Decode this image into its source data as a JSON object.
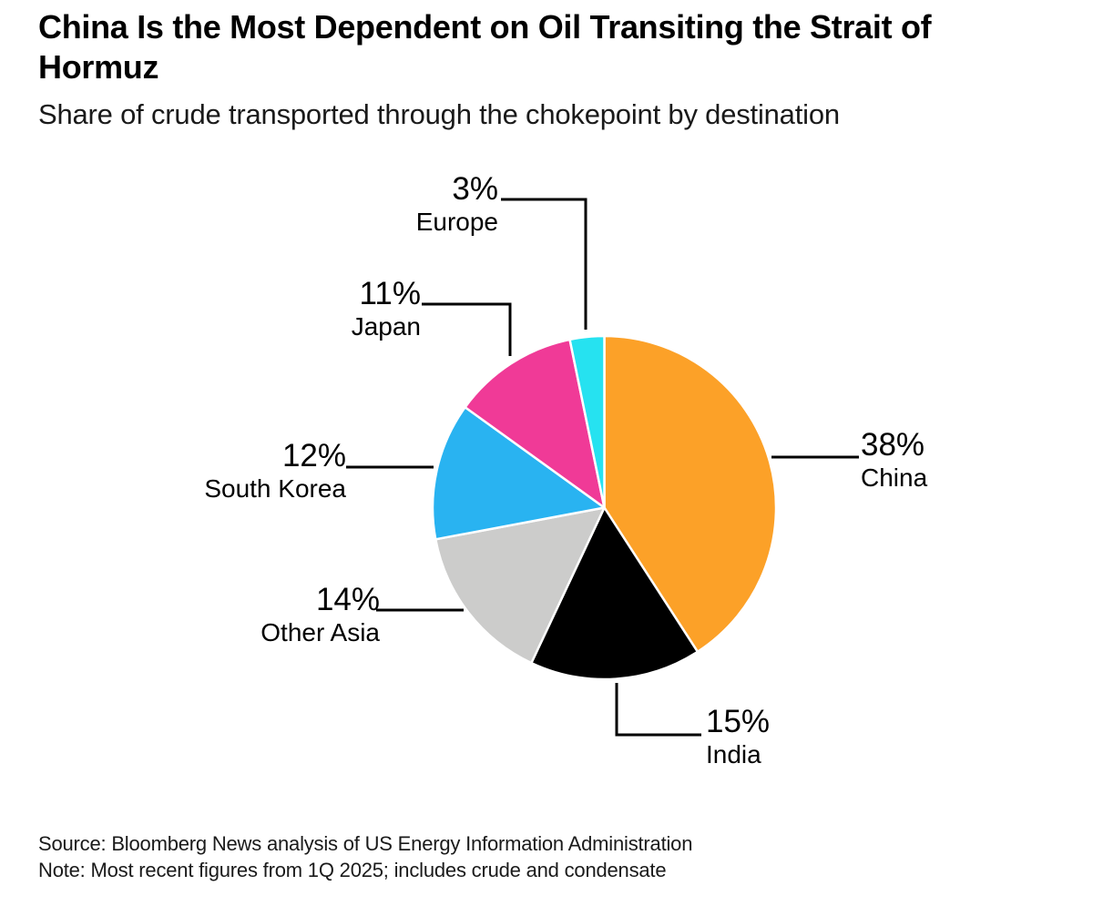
{
  "header": {
    "title_line1": "China Is the Most Dependent on Oil Transiting the Strait of",
    "title_line2": "Hormuz",
    "subtitle": "Share of crude transported through the chokepoint by destination"
  },
  "chart_data": {
    "type": "pie",
    "title": "China Is the Most Dependent on Oil Transiting the Strait of Hormuz",
    "subtitle": "Share of crude transported through the chokepoint by destination",
    "unit": "%",
    "start_angle_deg": 0,
    "direction": "clockwise",
    "legend_position": "callout-labels",
    "slices": [
      {
        "label": "China",
        "value": 38,
        "pct_label": "38%",
        "color": "#FCA128"
      },
      {
        "label": "India",
        "value": 15,
        "pct_label": "15%",
        "color": "#000000"
      },
      {
        "label": "Other Asia",
        "value": 14,
        "pct_label": "14%",
        "color": "#CCCCCB"
      },
      {
        "label": "South Korea",
        "value": 12,
        "pct_label": "12%",
        "color": "#29B3F1"
      },
      {
        "label": "Japan",
        "value": 11,
        "pct_label": "11%",
        "color": "#F03A97"
      },
      {
        "label": "Europe",
        "value": 3,
        "pct_label": "3%",
        "color": "#26E2F0"
      }
    ]
  },
  "footer": {
    "source": "Source: Bloomberg News analysis of US Energy Information Administration",
    "note": "Note: Most recent figures from 1Q 2025; includes crude and condensate"
  }
}
